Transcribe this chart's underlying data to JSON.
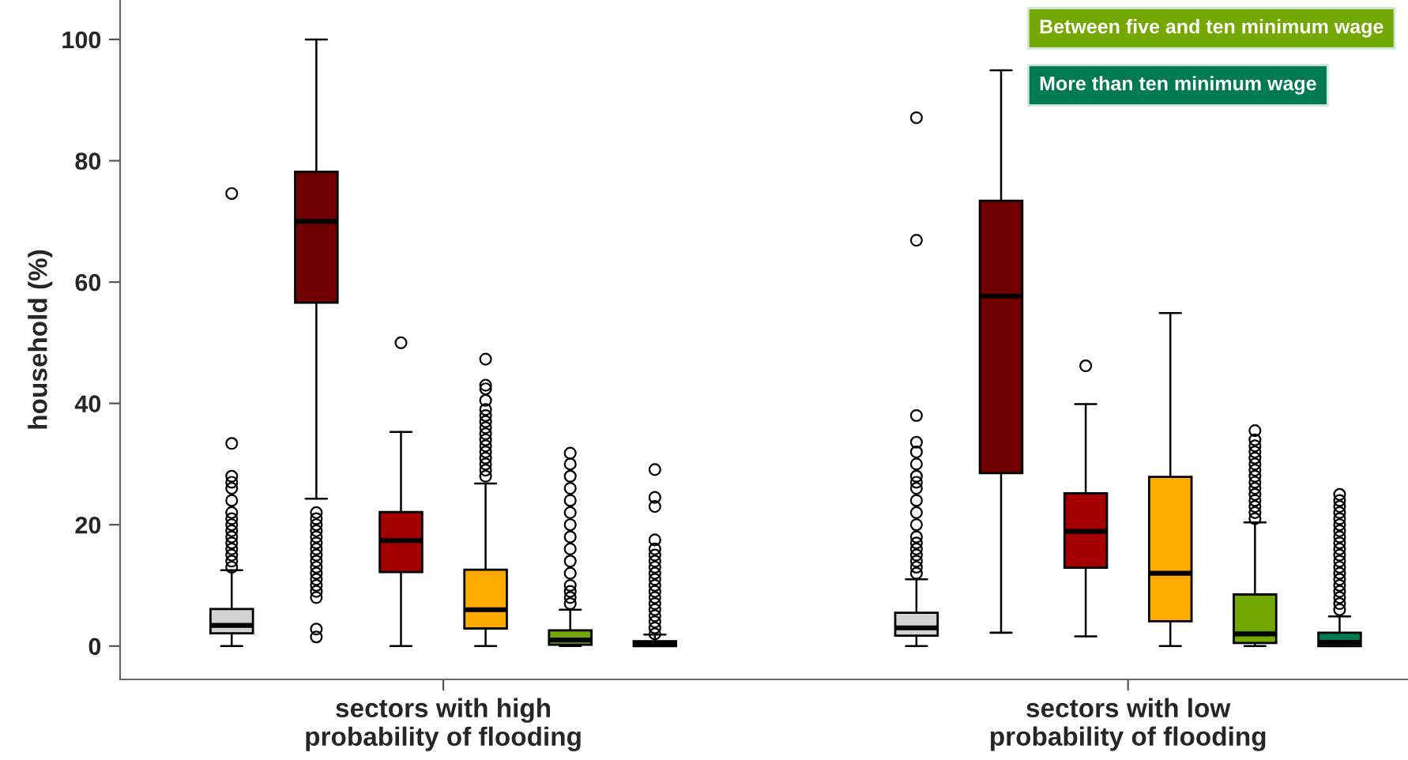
{
  "chart_data": {
    "type": "box",
    "ylabel": "household (%)",
    "categories": [
      "sectors with high\nprobability of flooding",
      "sectors with low\nprobability of flooding"
    ],
    "ylim": [
      -5.5,
      106.5
    ],
    "yticks": [
      0,
      20,
      40,
      60,
      80,
      100
    ],
    "grid": false,
    "legend": "top right",
    "series": [
      {
        "color": "#d3d3d3",
        "boxes": [
          {
            "low": 0,
            "q1": 2.1,
            "median": 3.4,
            "q3": 6.1,
            "high": 12.5,
            "outliers": [
              13,
              14,
              15,
              16,
              17,
              18,
              19,
              20,
              21,
              22,
              24,
              26,
              27,
              28,
              33.4,
              74.6
            ]
          },
          {
            "low": 0,
            "q1": 1.7,
            "median": 3,
            "q3": 5.5,
            "high": 11,
            "outliers": [
              12,
              13,
              14,
              15,
              16,
              17,
              18,
              20,
              22,
              24,
              26,
              27,
              28,
              30,
              32,
              33.6,
              38,
              66.9,
              87.1
            ]
          }
        ]
      },
      {
        "color": "#700000",
        "boxes": [
          {
            "low": 24.3,
            "q1": 56.6,
            "median": 70,
            "q3": 78.2,
            "high": 100,
            "outliers": [
              1.5,
              2.8,
              8,
              9,
              10,
              11,
              12,
              13,
              14,
              15,
              16,
              17,
              18,
              19,
              20,
              21,
              22
            ]
          },
          {
            "low": 2.2,
            "q1": 28.5,
            "median": 57.7,
            "q3": 73.4,
            "high": 94.9
          }
        ]
      },
      {
        "color": "#a50000",
        "boxes": [
          {
            "low": 0,
            "q1": 12.2,
            "median": 17.4,
            "q3": 22.1,
            "high": 35.3,
            "outliers": [
              50
            ]
          },
          {
            "low": 1.6,
            "q1": 12.9,
            "median": 18.9,
            "q3": 25.2,
            "high": 39.9,
            "outliers": [
              46.2
            ]
          }
        ]
      },
      {
        "color": "#ffaa00",
        "boxes": [
          {
            "low": 0,
            "q1": 2.9,
            "median": 6,
            "q3": 12.6,
            "high": 26.8,
            "outliers": [
              28,
              29,
              30,
              31,
              32,
              33,
              34,
              35,
              36,
              37,
              38,
              39,
              40.5,
              42.4,
              43,
              47.3
            ]
          },
          {
            "low": 0,
            "q1": 4.1,
            "median": 12,
            "q3": 27.9,
            "high": 54.9
          }
        ]
      },
      {
        "name": "Between five and ten minimum wage",
        "color": "#72a800",
        "boxes": [
          {
            "low": 0,
            "q1": 0.2,
            "median": 1,
            "q3": 2.6,
            "high": 6,
            "outliers": [
              7,
              8,
              9,
              10,
              12,
              14,
              16,
              18,
              20,
              22,
              24,
              26,
              28,
              30,
              31.8
            ]
          },
          {
            "low": 0,
            "q1": 0.5,
            "median": 2,
            "q3": 8.5,
            "high": 20.4,
            "outliers": [
              21,
              22,
              23,
              24,
              25,
              26,
              27,
              28,
              29,
              30,
              31,
              32,
              33,
              34,
              35.5
            ]
          }
        ]
      },
      {
        "name": "More than ten minimum wage",
        "color": "#007a50",
        "boxes": [
          {
            "low": 0,
            "q1": 0,
            "median": 0.3,
            "q3": 0.8,
            "high": 1.9,
            "outliers": [
              2,
              3,
              4,
              5,
              6,
              7,
              8,
              9,
              10,
              11,
              12,
              13,
              14,
              15,
              16,
              17.5,
              23,
              24.5,
              29.1
            ]
          },
          {
            "low": 0,
            "q1": 0,
            "median": 0.6,
            "q3": 2.2,
            "high": 4.9,
            "outliers": [
              6,
              7,
              8,
              9,
              10,
              11,
              12,
              13,
              14,
              15,
              16,
              17,
              18,
              19,
              20,
              21,
              22,
              23,
              24,
              25
            ]
          }
        ]
      }
    ]
  }
}
